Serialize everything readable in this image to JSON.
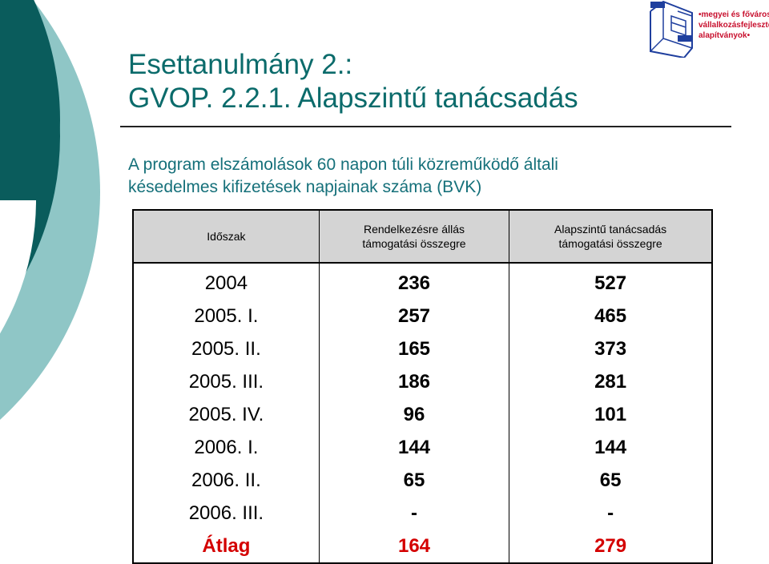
{
  "title": {
    "line1": "Esettanulmány 2.:",
    "line2": "GVOP. 2.2.1. Alapszintű tanácsadás"
  },
  "subtitle": {
    "line1": "A program elszámolások 60 napon túli közreműködő általi",
    "line2": "késedelmes kifizetések napjainak száma (BVK)"
  },
  "logo": {
    "line1": "•megyei és fővárosi",
    "line2": "vállalkozásfejlesztési",
    "line3": "alapítványok•",
    "icon": "cube-logo-icon",
    "color": "#1f3f9e",
    "text_color": "#c8102e"
  },
  "table": {
    "headers": [
      {
        "line1": "Időszak",
        "line2": ""
      },
      {
        "line1": "Rendelkezésre állás",
        "line2": "támogatási összegre"
      },
      {
        "line1": "Alapszintű tanácsadás",
        "line2": "támogatási összegre"
      }
    ],
    "rows": [
      {
        "period": "2004",
        "a": "236",
        "b": "527"
      },
      {
        "period": "2005. I.",
        "a": "257",
        "b": "465"
      },
      {
        "period": "2005. II.",
        "a": "165",
        "b": "373"
      },
      {
        "period": "2005. III.",
        "a": "186",
        "b": "281"
      },
      {
        "period": "2005. IV.",
        "a": "96",
        "b": "101"
      },
      {
        "period": "2006. I.",
        "a": "144",
        "b": "144"
      },
      {
        "period": "2006. II.",
        "a": "65",
        "b": "65"
      },
      {
        "period": "2006. III.",
        "a": "-",
        "b": "-"
      }
    ],
    "average": {
      "period": "Átlag",
      "a": "164",
      "b": "279"
    }
  },
  "colors": {
    "title": "#0b6b6b",
    "subtitle": "#15707a",
    "deco_dark": "#0a5c5c",
    "deco_light": "#8fc6c6",
    "header_bg": "#d4d4d4",
    "average": "#d40000"
  }
}
